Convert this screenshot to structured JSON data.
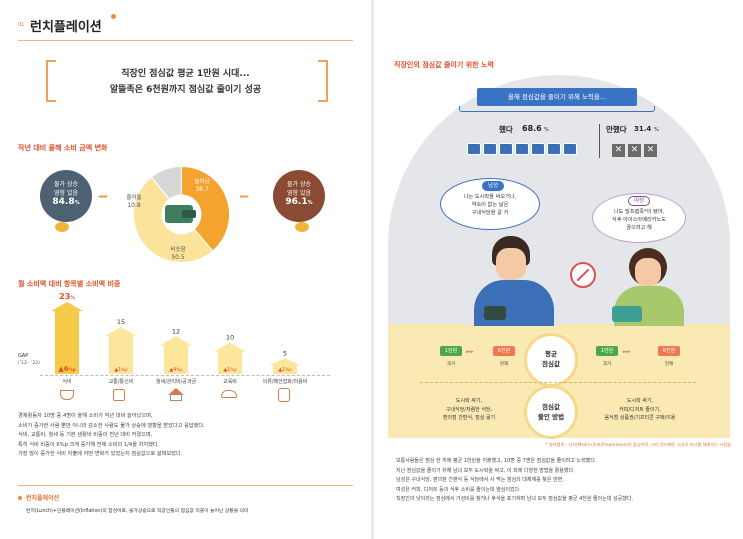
{
  "left": {
    "section_number": "01",
    "title": "런치플레이션",
    "headline1": "직장인 점심값 평균 1만원 시대...",
    "headline2": "알뜰족은 6천원까지 점심값 줄이기 성공",
    "section1_title": "작년 대비 올해 소비 금액 변화",
    "bubble_left": {
      "line1": "물가 상승",
      "line2": "영향 있음",
      "value": "84.8",
      "unit": "%"
    },
    "bubble_right": {
      "line1": "물가 상승",
      "line2": "영향 있음",
      "value": "96.1",
      "unit": "%"
    },
    "section2_title": "월 소비액 대비 항목별 소비액 비중",
    "gap_label": "GAP",
    "gap_sub": "('23 - '22)",
    "paragraph": [
      "경제활동자 10명 중 4명이 올해 소비가 작년 대비 늘어났으며,",
      "소비가 증가한 사람 뿐만 아니라 감소한 사람도 물가 상승에 영향을 받았다고 응답했다.",
      "식비, 교통비, 월세 등 기본 생활비 비중이 전년 대비 커졌으며,",
      "특히 식비 비중이 6%p 크게 증가해 전체 소비의 1/4을 차지했다.",
      "가장 많이 증가한 식비 지출에 어떤 변화가 있었는지 점심값으로 살펴보았다."
    ],
    "footnote_title": "런치플레이션",
    "footnote_text": "런치(Lunch)+인플레이션(Inflation)의 합성어로, 물가상승으로 직장인들의 점심값 지출이 늘어난 상황을 의미"
  },
  "right": {
    "section_title": "직장인의 점심값 줄이기 위한 노력",
    "banner": "올해 점심값을 줄이기 위해 노력을...",
    "did_label": "했다",
    "did_value": "68.6",
    "did_unit": "%",
    "didnt_label": "안했다",
    "didnt_value": "31.4",
    "didnt_unit": "%",
    "card_label": "점심값",
    "x_mark": "✕",
    "male": {
      "tag": "남성",
      "quote1": "나는 도시락을 싸오거나,",
      "quote2": "약속이 없는 날은",
      "quote3": "구내식당을 갈 거"
    },
    "female": {
      "tag": "여성",
      "quote1": "나도 밀프렙족*이 됐어,",
      "quote2": "식후 아이스아메리카노도",
      "quote3": "끊으려고 해"
    },
    "left_price": {
      "past": "1만원",
      "now": "6천원",
      "past_label": "과거",
      "now_label": "현재"
    },
    "right_price": {
      "past": "1만원",
      "now": "6천원",
      "past_label": "과거",
      "now_label": "현재"
    },
    "center_top": {
      "line1": "평균",
      "line2": "점심값"
    },
    "center_bottom": {
      "line1": "점심값",
      "line2": "줄인 방법"
    },
    "left_methods": [
      "도시락 싸기,",
      "구내식당/저렴한 식당,",
      "편의점 간편식, 점심 굶기"
    ],
    "right_methods": [
      "도시락 싸기,",
      "커피/디저트 줄이기,",
      "음식점 상품권/기프티콘 구매/이용"
    ],
    "footnote": "* 밀프렙족 : 식사(Meal)+준비(Preparation)의 합성어로, 미리 준비해둔 식사로 끼니를 해결하는 사람들",
    "paragraph": [
      "보통사람들은 점심 한 끼에 평균 1만원을 지출했고, 10명 중 7명은 점심값을 줄이려고 노력했다.",
      "지난 점심값을 줄이기 위해 남녀 모두 도시락을 싸고, 이 외에 다양한 방법을 활용했다.",
      "남성은 구내식당, 편의점 간편식 등 식당에서 사 먹는 점심의 대체재를 찾은 반면,",
      "여성은 커피, 디저트 등의 식후 소비를 줄이는데 열심이었다.",
      "직장인의 낮이라는 점심에서 가성비를 찾거나 후식을 포기하며 남녀 모두 점심값을 평균 4천원 줄이는데 성공했다."
    ]
  },
  "chart_data": [
    {
      "type": "pie",
      "categories": [
        "늘어남",
        "줄어듦",
        "비슷함"
      ],
      "values": [
        38.7,
        10.8,
        50.5
      ],
      "colors": [
        "#f4a32f",
        "#d7d7d7",
        "#fbe49a"
      ]
    },
    {
      "type": "bar",
      "categories": [
        "식비",
        "교통/통신비",
        "월세/관리비/공과금",
        "교육비",
        "의류/패션잡화/미용비"
      ],
      "values": [
        23,
        15,
        12,
        10,
        5
      ],
      "value_labels": [
        "23",
        "15",
        "12",
        "10",
        "5"
      ],
      "value_unit": "%",
      "gap_values": [
        "6",
        "1",
        "4",
        "1",
        "1"
      ],
      "gap_unit": "%p"
    }
  ]
}
